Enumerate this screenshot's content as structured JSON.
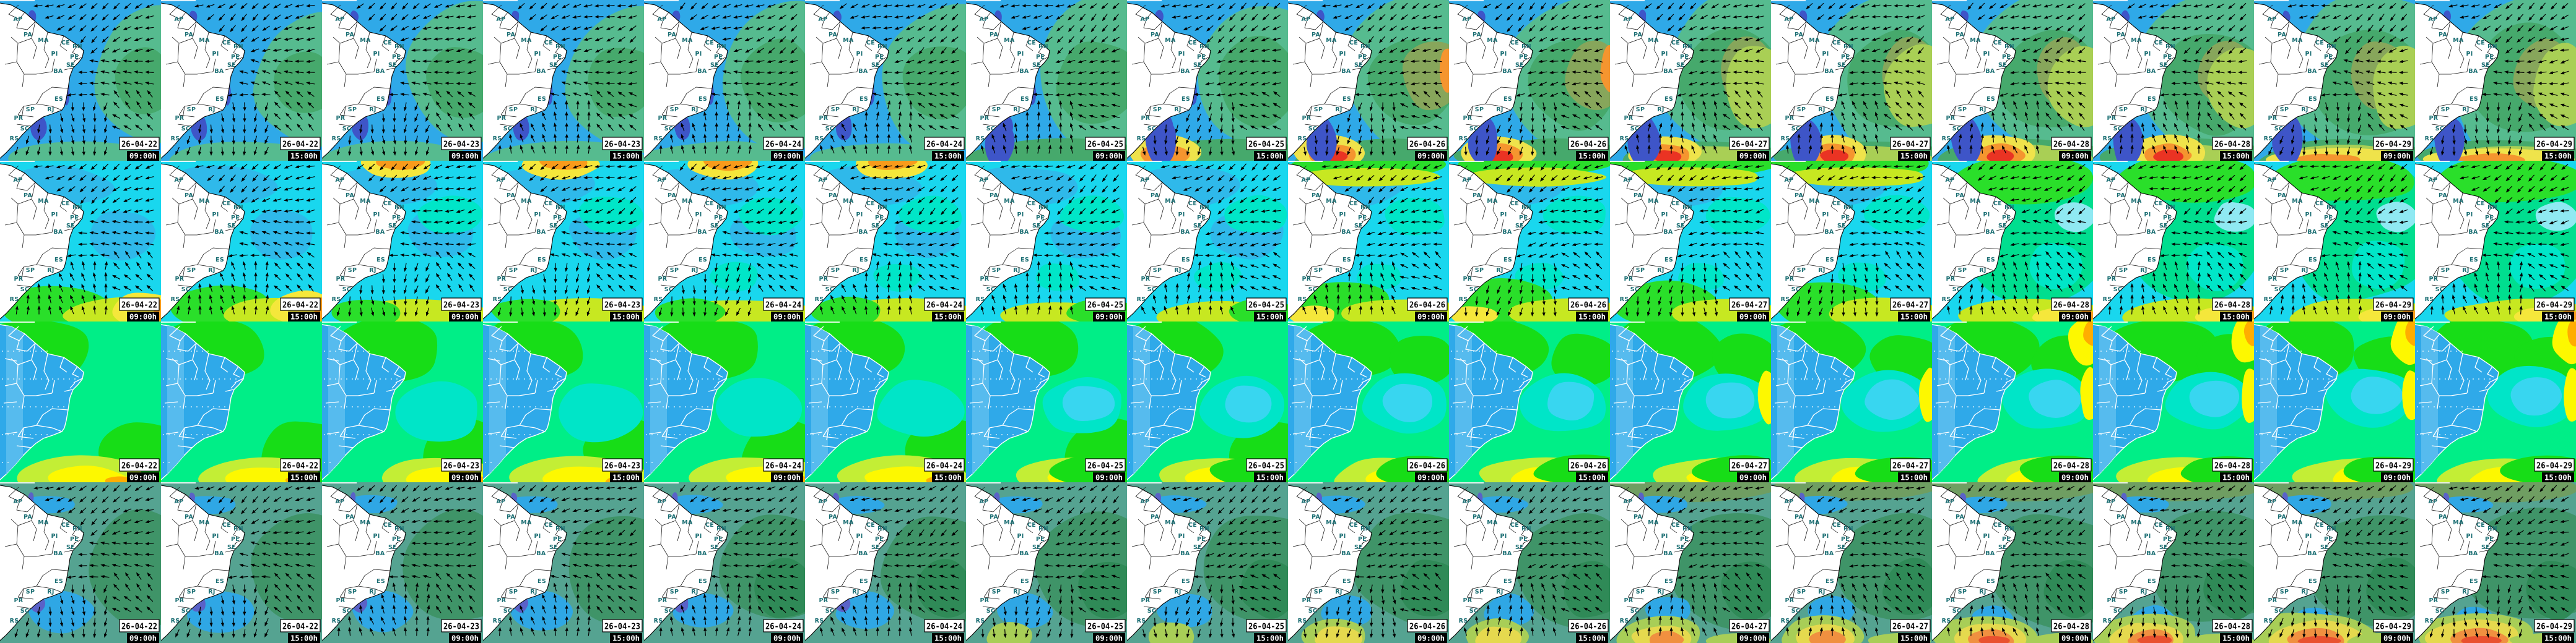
{
  "map": {
    "region_labels": [
      "AP",
      "PA",
      "MA",
      "CE",
      "RN",
      "PI",
      "PE",
      "SE",
      "BA",
      "ES",
      "SP",
      "RJ",
      "PR",
      "SC",
      "RS"
    ],
    "label_text_color": "#1C6F74",
    "land_color": "#FFFFFF",
    "coast_color": "#000000",
    "arrow_color": "#000000"
  },
  "datetime_label": {
    "date_bg": "#FFFFFF",
    "date_text": "#000000",
    "date_border": "#000000",
    "time_bg": "#000000",
    "time_text": "#FFFFFF"
  },
  "columns": [
    {
      "date": "26-04-22",
      "time": "09:00h"
    },
    {
      "date": "26-04-22",
      "time": "15:00h"
    },
    {
      "date": "26-04-23",
      "time": "09:00h"
    },
    {
      "date": "26-04-23",
      "time": "15:00h"
    },
    {
      "date": "26-04-24",
      "time": "09:00h"
    },
    {
      "date": "26-04-24",
      "time": "15:00h"
    },
    {
      "date": "26-04-25",
      "time": "09:00h"
    },
    {
      "date": "26-04-25",
      "time": "15:00h"
    },
    {
      "date": "26-04-26",
      "time": "09:00h"
    },
    {
      "date": "26-04-26",
      "time": "15:00h"
    },
    {
      "date": "26-04-27",
      "time": "09:00h"
    },
    {
      "date": "26-04-27",
      "time": "15:00h"
    },
    {
      "date": "26-04-28",
      "time": "09:00h"
    },
    {
      "date": "26-04-28",
      "time": "15:00h"
    },
    {
      "date": "26-04-29",
      "time": "09:00h"
    },
    {
      "date": "26-04-29",
      "time": "15:00h"
    }
  ],
  "rows": [
    {
      "id": "row-1-blue-arrow-maps",
      "has_arrows": true,
      "has_region_labels": true,
      "palette": {
        "base": "#2FA9E8",
        "teal": "#56BB8F",
        "green": "#46A96C",
        "olive": "#87A65B",
        "ygreen": "#A9CF55",
        "yellow": "#EFE34B",
        "orange": "#F5952F",
        "red": "#EA3323",
        "royal": "#3E55C8"
      }
    },
    {
      "id": "row-2-cyan-arrow-maps",
      "has_arrows": true,
      "has_region_labels": true,
      "palette": {
        "base": "#19D7EE",
        "blue": "#2FB9EA",
        "turq": "#00E6C8",
        "cyan": "#8FE9F2",
        "seagreen": "#00DE8F",
        "green": "#2ADF2A",
        "ygreen": "#C7E821",
        "yellow": "#F5E73B",
        "orange": "#F89B1B"
      }
    },
    {
      "id": "row-3-green-contour-maps",
      "has_arrows": false,
      "has_region_labels": false,
      "palette": {
        "base": "#00EE87",
        "green": "#17DD17",
        "turq": "#00E5C8",
        "cyan": "#38D6F0",
        "ygreen": "#C3EE35",
        "yellow": "#FDF800",
        "orange": "#FFAD00",
        "land": "#2FA9E9",
        "landband": "#56BBEE",
        "border": "#FFFFFF"
      }
    },
    {
      "id": "row-4-teal-arrow-maps",
      "has_arrows": true,
      "has_region_labels": true,
      "palette": {
        "base": "#55A391",
        "green": "#3F9468",
        "dgreen": "#2F8A57",
        "olive": "#6F9E62",
        "blue": "#2FA7E5",
        "indigo": "#5A62C8",
        "ygreen": "#A8CE57",
        "yellow": "#E5D94E",
        "orange": "#F09040",
        "red": "#E9512F"
      }
    }
  ]
}
